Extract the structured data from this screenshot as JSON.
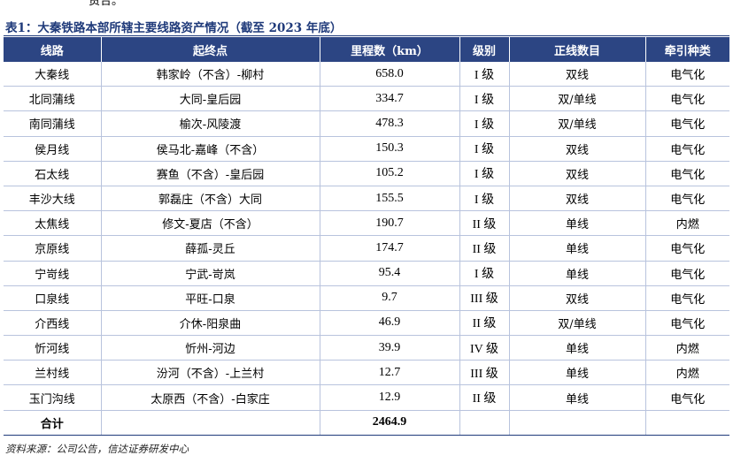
{
  "fragment_text": "贸合。",
  "table": {
    "title": "表1：大秦铁路本部所辖主要线路资产情况（截至 2023 年底）",
    "headers": [
      "线路",
      "起终点",
      "里程数（km）",
      "级别",
      "正线数目",
      "牵引种类"
    ],
    "rows": [
      [
        "大秦线",
        "韩家岭（不含）-柳村",
        "658.0",
        "I 级",
        "双线",
        "电气化"
      ],
      [
        "北同蒲线",
        "大同-皇后园",
        "334.7",
        "I 级",
        "双/单线",
        "电气化"
      ],
      [
        "南同蒲线",
        "榆次-风陵渡",
        "478.3",
        "I 级",
        "双/单线",
        "电气化"
      ],
      [
        "侯月线",
        "侯马北-嘉峰（不含）",
        "150.3",
        "I 级",
        "双线",
        "电气化"
      ],
      [
        "石太线",
        "赛鱼（不含）-皇后园",
        "105.2",
        "I 级",
        "双线",
        "电气化"
      ],
      [
        "丰沙大线",
        "郭磊庄（不含）大同",
        "155.5",
        "I 级",
        "双线",
        "电气化"
      ],
      [
        "太焦线",
        "修文-夏店（不含）",
        "190.7",
        "II 级",
        "单线",
        "内燃"
      ],
      [
        "京原线",
        "薛孤-灵丘",
        "174.7",
        "II 级",
        "单线",
        "电气化"
      ],
      [
        "宁岢线",
        "宁武-岢岚",
        "95.4",
        "I 级",
        "单线",
        "电气化"
      ],
      [
        "口泉线",
        "平旺-口泉",
        "9.7",
        "III 级",
        "双线",
        "电气化"
      ],
      [
        "介西线",
        "介休-阳泉曲",
        "46.9",
        "II 级",
        "双/单线",
        "电气化"
      ],
      [
        "忻河线",
        "忻州-河边",
        "39.9",
        "IV 级",
        "单线",
        "内燃"
      ],
      [
        "兰村线",
        "汾河（不含）-上兰村",
        "12.7",
        "III 级",
        "单线",
        "内燃"
      ],
      [
        "玉门沟线",
        "太原西（不含）-白家庄",
        "12.9",
        "II 级",
        "单线",
        "电气化"
      ]
    ],
    "total": {
      "label": "合计",
      "value": "2464.9"
    }
  },
  "source": "资料来源：公司公告，信达证券研发中心"
}
